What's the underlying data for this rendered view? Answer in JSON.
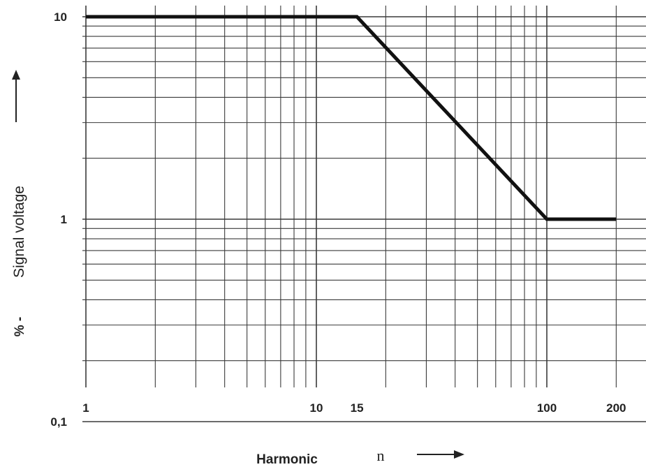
{
  "chart_data": {
    "type": "line",
    "x_scale": "log",
    "y_scale": "log",
    "xlim": [
      1,
      200
    ],
    "ylim": [
      0.1,
      10
    ],
    "grid": true,
    "x_ticks": [
      {
        "value": 1,
        "label": "1"
      },
      {
        "value": 10,
        "label": "10"
      },
      {
        "value": 15,
        "label": "15"
      },
      {
        "value": 100,
        "label": "100"
      },
      {
        "value": 200,
        "label": "200"
      }
    ],
    "y_ticks": [
      {
        "value": 10,
        "label": "10"
      },
      {
        "value": 1,
        "label": "1"
      },
      {
        "value": 0.1,
        "label": "0,1"
      }
    ],
    "xlabel": "Harmonic",
    "xlabel_variable": "n",
    "ylabel": "Signal voltage",
    "ylabel_unit": "% -",
    "series": [
      {
        "x": [
          1,
          15,
          100,
          200
        ],
        "y": [
          10,
          10,
          1,
          1
        ],
        "color": "#111111"
      }
    ]
  }
}
